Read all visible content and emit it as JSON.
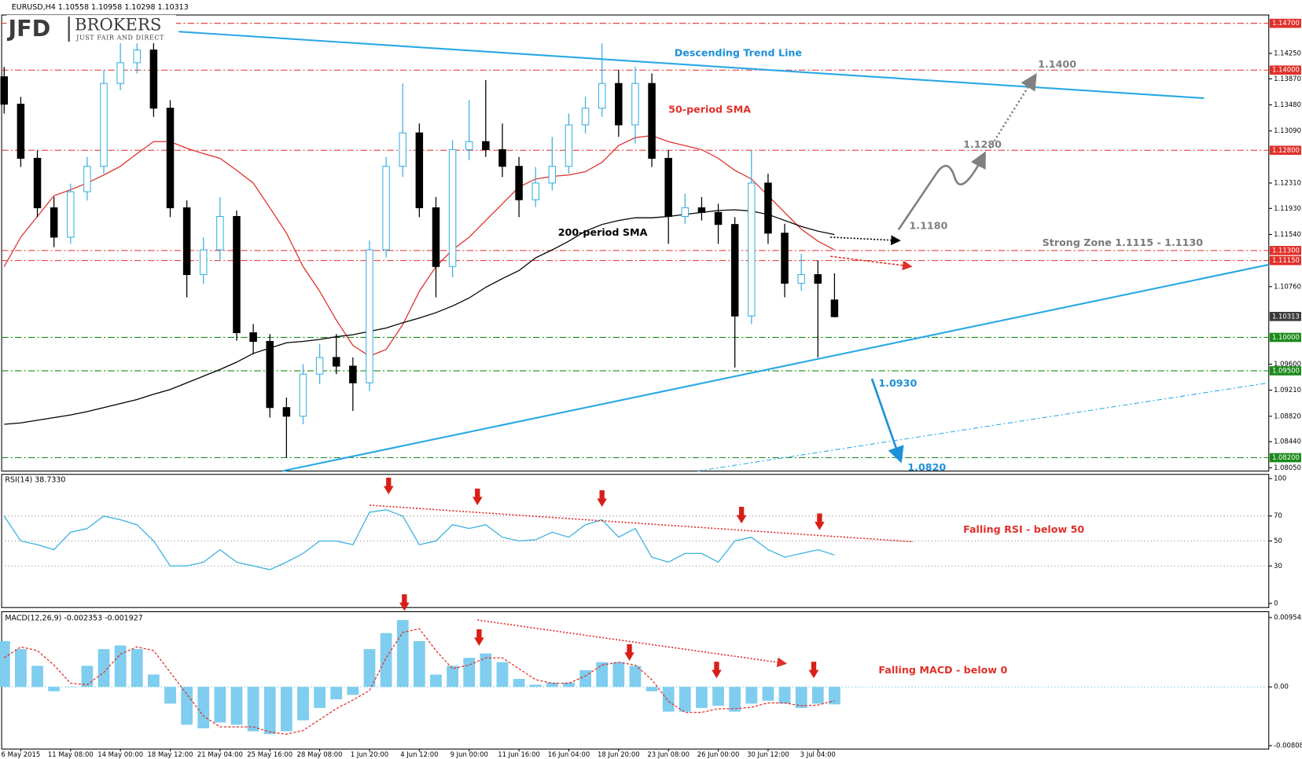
{
  "logo": {
    "mark": "JFD",
    "name": "BROKERS",
    "tagline": "JUST FAIR AND DIRECT"
  },
  "chart_data": [
    {
      "type": "candlestick",
      "title": "EURUSD,H4  1.10558 1.10958 1.10298 1.10313",
      "categories": [
        null,
        "6 May 2015",
        null,
        null,
        "11 May 08:00",
        null,
        null,
        "14 May 00:00",
        null,
        null,
        "18 May 12:00",
        null,
        null,
        "21 May 04:00",
        null,
        null,
        "25 May 16:00",
        null,
        null,
        "28 May 08:00",
        null,
        null,
        "1 Jun 20:00",
        null,
        null,
        "4 Jun 12:00",
        null,
        null,
        "9 Jun 00:00",
        null,
        null,
        "11 Jun 16:00",
        null,
        null,
        "16 Jun 04:00",
        null,
        null,
        "18 Jun 20:00",
        null,
        null,
        "23 Jun 08:00",
        null,
        null,
        "26 Jun 00:00",
        null,
        null,
        "30 Jun 12:00",
        null,
        null,
        "3 Jul 04:00",
        null
      ],
      "open": [
        1.139,
        1.1349,
        1.1268,
        1.1194,
        1.115,
        1.1218,
        1.1256,
        1.138,
        1.1411,
        1.143,
        1.1343,
        1.1194,
        1.1094,
        1.1131,
        1.1181,
        1.1007,
        1.0994,
        1.0895,
        1.0882,
        1.0945,
        1.097,
        1.0957,
        1.0932,
        1.1131,
        1.1256,
        1.1306,
        1.1194,
        1.1106,
        1.1281,
        1.1293,
        1.1281,
        1.1256,
        1.1206,
        1.1231,
        1.1256,
        1.1318,
        1.1343,
        1.138,
        1.1318,
        1.138,
        1.1268,
        1.1181,
        1.1194,
        1.1187,
        1.1169,
        1.1032,
        1.1231,
        1.1156,
        1.1081,
        1.1094,
        1.1056
      ],
      "high": [
        1.1405,
        1.136,
        1.128,
        1.121,
        1.123,
        1.127,
        1.14,
        1.1445,
        1.1465,
        1.1445,
        1.1355,
        1.1205,
        1.115,
        1.121,
        1.119,
        1.102,
        1.1005,
        1.091,
        1.096,
        1.099,
        1.1005,
        1.097,
        1.1145,
        1.127,
        1.138,
        1.132,
        1.121,
        1.1295,
        1.1355,
        1.1385,
        1.132,
        1.127,
        1.1255,
        1.13,
        1.1335,
        1.136,
        1.144,
        1.14,
        1.1405,
        1.1395,
        1.128,
        1.1215,
        1.121,
        1.12,
        1.118,
        1.128,
        1.1245,
        1.117,
        1.1125,
        1.1115,
        1.1096
      ],
      "low": [
        1.1335,
        1.1255,
        1.118,
        1.1135,
        1.114,
        1.1205,
        1.1245,
        1.137,
        1.1395,
        1.133,
        1.118,
        1.106,
        1.108,
        1.1115,
        1.0995,
        1.0975,
        1.088,
        1.082,
        1.087,
        1.093,
        1.0945,
        1.089,
        1.092,
        1.112,
        1.124,
        1.118,
        1.106,
        1.109,
        1.1265,
        1.127,
        1.124,
        1.118,
        1.1195,
        1.122,
        1.1245,
        1.1305,
        1.133,
        1.13,
        1.129,
        1.1255,
        1.114,
        1.117,
        1.1175,
        1.114,
        1.0955,
        1.102,
        1.114,
        1.106,
        1.107,
        1.097,
        1.103
      ],
      "close": [
        1.1349,
        1.1268,
        1.1194,
        1.115,
        1.1218,
        1.1256,
        1.138,
        1.1411,
        1.143,
        1.1343,
        1.1194,
        1.1094,
        1.1131,
        1.1181,
        1.1007,
        1.0994,
        1.0895,
        1.0882,
        1.0945,
        1.097,
        1.0957,
        1.0932,
        1.1131,
        1.1256,
        1.1306,
        1.1194,
        1.1106,
        1.1281,
        1.1293,
        1.1281,
        1.1256,
        1.1206,
        1.1231,
        1.1256,
        1.1318,
        1.1343,
        1.138,
        1.1318,
        1.138,
        1.1268,
        1.1181,
        1.1194,
        1.1187,
        1.1169,
        1.1032,
        1.1231,
        1.1156,
        1.1081,
        1.1094,
        1.1081,
        1.1031
      ],
      "up_color": "#3ab0e2",
      "down_color": "#000000",
      "series": [
        {
          "name": "50-period SMA",
          "color": "#e0302a",
          "values": [
            1.1106,
            1.115,
            1.1181,
            1.1212,
            1.1221,
            1.1231,
            1.1243,
            1.1256,
            1.1275,
            1.1293,
            1.1293,
            1.1283,
            1.1275,
            1.1268,
            1.125,
            1.1231,
            1.1194,
            1.1156,
            1.1106,
            1.1069,
            1.1026,
            1.0988,
            1.0972,
            1.0982,
            1.1019,
            1.1069,
            1.1106,
            1.1131,
            1.115,
            1.1175,
            1.12,
            1.1225,
            1.1237,
            1.1241,
            1.1243,
            1.1248,
            1.1262,
            1.1287,
            1.1299,
            1.1302,
            1.1293,
            1.1287,
            1.1281,
            1.1268,
            1.125,
            1.1237,
            1.1212,
            1.1187,
            1.1162,
            1.1144,
            1.1131
          ]
        },
        {
          "name": "200-period SMA",
          "color": "#000000",
          "values": [
            1.087,
            1.0872,
            1.0876,
            1.088,
            1.0884,
            1.0889,
            1.0895,
            1.0901,
            1.0907,
            1.0915,
            1.0922,
            1.0932,
            1.0942,
            1.0952,
            1.0963,
            1.0976,
            1.0984,
            1.0992,
            1.0994,
            1.0997,
            1.1001,
            1.1004,
            1.1009,
            1.1014,
            1.1022,
            1.1029,
            1.1037,
            1.1047,
            1.1059,
            1.1075,
            1.1088,
            1.11,
            1.1119,
            1.1131,
            1.1144,
            1.1159,
            1.1169,
            1.1175,
            1.1179,
            1.1179,
            1.1181,
            1.1184,
            1.1187,
            1.119,
            1.1191,
            1.1189,
            1.1184,
            1.1175,
            1.1166,
            1.1159,
            1.1154
          ]
        }
      ],
      "ylim": [
        1.08,
        1.148
      ],
      "yticks": [
        {
          "value": 1.1425,
          "label": "1.14250"
        },
        {
          "value": 1.1387,
          "label": "1.13870"
        },
        {
          "value": 1.1348,
          "label": "1.13480"
        },
        {
          "value": 1.1309,
          "label": "1.13090"
        },
        {
          "value": 1.1231,
          "label": "1.12310"
        },
        {
          "value": 1.1193,
          "label": "1.11930"
        },
        {
          "value": 1.1154,
          "label": "1.11540"
        },
        {
          "value": 1.1076,
          "label": "1.10760"
        },
        {
          "value": 1.096,
          "label": "1.09600"
        },
        {
          "value": 1.0921,
          "label": "1.09210"
        },
        {
          "value": 1.0882,
          "label": "1.08820"
        },
        {
          "value": 1.0844,
          "label": "1.08440"
        },
        {
          "value": 1.0805,
          "label": "1.08050"
        }
      ],
      "grid": false,
      "levels": [
        {
          "value": 1.147,
          "label": "1.14700",
          "color": "#e0302a"
        },
        {
          "value": 1.14,
          "label": "1.14000",
          "color": "#e0302a"
        },
        {
          "value": 1.128,
          "label": "1.12800",
          "color": "#e0302a"
        },
        {
          "value": 1.113,
          "label": "1.11300",
          "color": "#e0302a"
        },
        {
          "value": 1.1115,
          "label": "1.11150",
          "color": "#e0302a"
        },
        {
          "value": 1.1,
          "label": "1.10000",
          "color": "#1a8a1a"
        },
        {
          "value": 1.095,
          "label": "1.09500",
          "color": "#1a8a1a"
        },
        {
          "value": 1.082,
          "label": "1.08200",
          "color": "#1a8a1a"
        }
      ],
      "last_price": {
        "value": 1.10313,
        "label": "1.10313"
      },
      "annotations": [
        "Descending Trend Line",
        "Strong Zone 1.1115 - 1.1130",
        "1.1400",
        "1.1280",
        "1.1180",
        "1.0930",
        "1.0820"
      ]
    },
    {
      "type": "line",
      "title": "RSI(14) 38.7330",
      "color": "#3ab0e2",
      "values": [
        70,
        50,
        47,
        43,
        57,
        60,
        70,
        67,
        63,
        50,
        30,
        30,
        33,
        43,
        33,
        30,
        27,
        33,
        40,
        50,
        50,
        47,
        73,
        75,
        70,
        47,
        50,
        63,
        60,
        63,
        53,
        50,
        51,
        57,
        53,
        63,
        67,
        53,
        60,
        37,
        33,
        40,
        40,
        33,
        50,
        53,
        43,
        37,
        40,
        43,
        38.7
      ],
      "ylim": [
        0,
        100
      ],
      "yticks": [
        0,
        30,
        50,
        70,
        100
      ],
      "grid": true,
      "annotations": [
        "Falling RSI - below 50"
      ]
    },
    {
      "type": "bar",
      "title": "MACD(12,26,9) -0.002353 -0.001927",
      "color": "#7fcdef",
      "signal_color": "#e0302a",
      "values": [
        0.0063,
        0.0052,
        0.0029,
        -0.0006,
        0,
        0.0029,
        0.0052,
        0.0057,
        0.0052,
        0.0017,
        -0.0023,
        -0.0052,
        -0.0057,
        -0.0049,
        -0.0052,
        -0.0061,
        -0.0065,
        -0.0061,
        -0.0046,
        -0.0029,
        -0.0017,
        -0.0011,
        0.0052,
        0.0074,
        0.0092,
        0.0063,
        0.0017,
        0.0029,
        0.004,
        0.0046,
        0.0034,
        0.0011,
        0.0003,
        0.0006,
        0.0006,
        0.0023,
        0.0034,
        0.0034,
        0.0029,
        -0.0006,
        -0.0034,
        -0.0034,
        -0.0029,
        -0.0026,
        -0.0034,
        -0.0023,
        -0.0019,
        -0.0023,
        -0.0029,
        -0.0023,
        -0.0024
      ],
      "signal": [
        0.004,
        0.0055,
        0.005,
        0.003,
        0.0005,
        0.0003,
        0.002,
        0.0045,
        0.0055,
        0.005,
        0.002,
        -0.001,
        -0.004,
        -0.0055,
        -0.0055,
        -0.0055,
        -0.0062,
        -0.0065,
        -0.006,
        -0.0045,
        -0.003,
        -0.0018,
        -0.0005,
        0.004,
        0.0075,
        0.008,
        0.005,
        0.0025,
        0.003,
        0.004,
        0.004,
        0.0025,
        0.001,
        0.0005,
        0.0005,
        0.0015,
        0.003,
        0.0034,
        0.003,
        0.001,
        -0.002,
        -0.0035,
        -0.0035,
        -0.003,
        -0.003,
        -0.0028,
        -0.0022,
        -0.0022,
        -0.0026,
        -0.0025,
        -0.0019
      ],
      "ylim": [
        -0.008087,
        0.009545
      ],
      "yticks": [
        -0.008087,
        {
          "value": 0,
          "label": "0.00"
        },
        0.009545
      ],
      "grid": true,
      "annotations": [
        "Falling MACD - below 0"
      ]
    }
  ]
}
